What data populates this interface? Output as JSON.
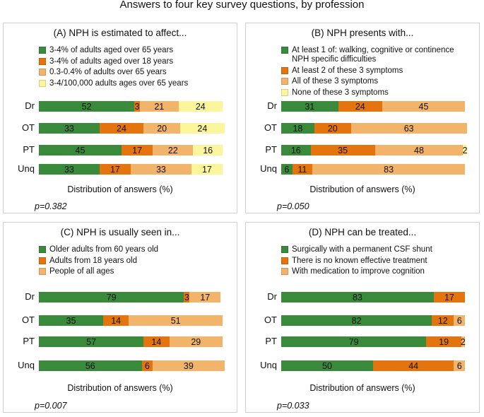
{
  "title": "Answers to four key survey questions, by profession",
  "colors": {
    "green": "#3a8a3c",
    "orange": "#e3740e",
    "lightorange": "#f1b46a",
    "yellow": "#fbf59b"
  },
  "chart_data": [
    {
      "type": "bar",
      "orientation": "horizontal-stacked",
      "title": "(A)  NPH is estimated to affect...",
      "xlabel": "Distribution of answers (%)",
      "pvalue": "p=0.382",
      "categories": [
        "Dr",
        "OT",
        "PT",
        "Unq"
      ],
      "series": [
        {
          "name": "3-4% of adults aged over 65 years",
          "color": "green",
          "values": [
            52,
            33,
            45,
            33
          ]
        },
        {
          "name": "3-4% of adults aged over 18 years",
          "color": "orange",
          "values": [
            3,
            24,
            17,
            17
          ]
        },
        {
          "name": "0.3-0.4% of adults over 65 years",
          "color": "lightorange",
          "values": [
            21,
            20,
            22,
            33
          ]
        },
        {
          "name": "3-4/100,000 adults ages over 65 years",
          "color": "yellow",
          "values": [
            24,
            24,
            16,
            17
          ]
        }
      ]
    },
    {
      "type": "bar",
      "orientation": "horizontal-stacked",
      "title": "(B)  NPH presents with...",
      "xlabel": "Distribution of answers (%)",
      "pvalue": "p=0.050",
      "categories": [
        "Dr",
        "OT",
        "PT",
        "Unq"
      ],
      "series": [
        {
          "name": "At least 1 of: walking, cognitive or continence\nNPH specific difficulties",
          "color": "green",
          "values": [
            31,
            18,
            16,
            6
          ]
        },
        {
          "name": "At least 2 of these 3 symptoms",
          "color": "orange",
          "values": [
            24,
            20,
            35,
            11
          ]
        },
        {
          "name": "All of these 3 symptoms",
          "color": "lightorange",
          "values": [
            45,
            63,
            48,
            83
          ]
        },
        {
          "name": "None of these 3 symptoms",
          "color": "yellow",
          "values": [
            0,
            0,
            2,
            0
          ]
        }
      ]
    },
    {
      "type": "bar",
      "orientation": "horizontal-stacked",
      "title": "(C)  NPH is usually seen in...",
      "xlabel": "Distribution of answers (%)",
      "pvalue": "p=0.007",
      "categories": [
        "Dr",
        "OT",
        "PT",
        "Unq"
      ],
      "series": [
        {
          "name": "Older adults from 60 years old",
          "color": "green",
          "values": [
            79,
            35,
            57,
            56
          ]
        },
        {
          "name": "Adults from 18 years old",
          "color": "orange",
          "values": [
            3,
            14,
            14,
            6
          ]
        },
        {
          "name": "People of all ages",
          "color": "lightorange",
          "values": [
            17,
            51,
            29,
            39
          ]
        }
      ]
    },
    {
      "type": "bar",
      "orientation": "horizontal-stacked",
      "title": "(D)  NPH can be treated...",
      "xlabel": "Distribution of answers (%)",
      "pvalue": "p=0.033",
      "categories": [
        "Dr",
        "OT",
        "PT",
        "Unq"
      ],
      "series": [
        {
          "name": "Surgically with a permanent CSF shunt",
          "color": "green",
          "values": [
            83,
            82,
            79,
            50
          ]
        },
        {
          "name": "There is no known effective treatment",
          "color": "orange",
          "values": [
            17,
            12,
            19,
            44
          ]
        },
        {
          "name": "With medication to improve cognition",
          "color": "lightorange",
          "values": [
            0,
            6,
            2,
            6
          ]
        }
      ]
    }
  ]
}
